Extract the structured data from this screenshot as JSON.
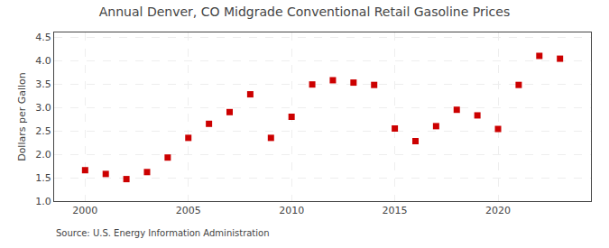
{
  "chart_data": {
    "type": "scatter",
    "title": "Annual Denver, CO Midgrade Conventional Retail Gasoline Prices",
    "ylabel": "Dollars per Gallon",
    "annotations": [
      "Source: U.S. Energy Information Administration"
    ],
    "x": [
      2000,
      2001,
      2002,
      2003,
      2004,
      2005,
      2006,
      2007,
      2008,
      2009,
      2010,
      2011,
      2012,
      2013,
      2014,
      2015,
      2016,
      2017,
      2018,
      2019,
      2020,
      2021,
      2022,
      2023
    ],
    "values": [
      1.66,
      1.58,
      1.47,
      1.62,
      1.93,
      2.35,
      2.65,
      2.9,
      3.28,
      2.35,
      2.8,
      3.49,
      3.58,
      3.53,
      3.48,
      2.55,
      2.28,
      2.6,
      2.95,
      2.83,
      2.54,
      3.48,
      4.1,
      4.04
    ],
    "color": "#cc0000",
    "marker": "square",
    "xlim": [
      1998.5,
      2024.5
    ],
    "ylim": [
      1.0,
      4.6
    ],
    "xticks": [
      2000,
      2005,
      2010,
      2015,
      2020
    ],
    "yticks": [
      {
        "value": 1.0,
        "label": "1.0"
      },
      {
        "value": 1.5,
        "label": "1.5"
      },
      {
        "value": 2.0,
        "label": "2.0"
      },
      {
        "value": 2.5,
        "label": "2.5"
      },
      {
        "value": 3.0,
        "label": "3.0"
      },
      {
        "value": 3.5,
        "label": "3.5"
      },
      {
        "value": 4.0,
        "label": "4.0"
      },
      {
        "value": 4.5,
        "label": "4.5"
      }
    ],
    "grid": true
  }
}
